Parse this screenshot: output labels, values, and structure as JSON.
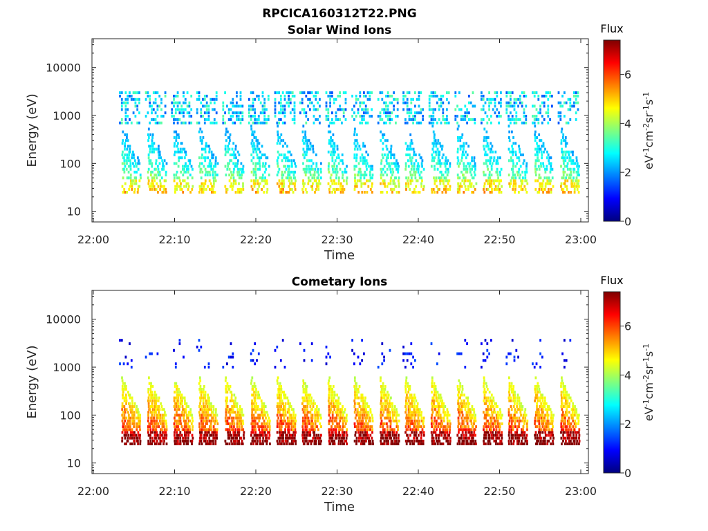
{
  "figure": {
    "title": "RPCICA160312T22.PNG"
  },
  "chart_data": [
    {
      "type": "heatmap",
      "title": "Solar Wind Ions",
      "xlabel": "Time",
      "ylabel": "Energy (eV)",
      "x_ticks": [
        "22:00",
        "22:10",
        "22:20",
        "22:30",
        "22:40",
        "22:50",
        "23:00"
      ],
      "x_range": [
        "22:00",
        "23:00"
      ],
      "y_scale": "log",
      "y_ticks": [
        10,
        100,
        1000,
        10000
      ],
      "y_tick_labels": [
        "10",
        "100",
        "1000",
        "10000"
      ],
      "y_range": [
        6,
        40000
      ],
      "colorbar": {
        "label": "Flux",
        "units": "eV-1cm-2sr-1s-1",
        "range": [
          0,
          7.4
        ],
        "ticks": [
          0,
          2,
          4,
          6
        ],
        "tick_labels": [
          "0",
          "2",
          "4",
          "6"
        ],
        "colormap": "jet"
      },
      "sweep_start_minutes": [
        3.5,
        6.7,
        9.9,
        13.0,
        16.2,
        19.4,
        22.6,
        25.7,
        28.9,
        32.1,
        35.3,
        38.4,
        41.6,
        44.8,
        48.0,
        51.1,
        54.3,
        57.5
      ],
      "bands": [
        {
          "name": "",
          "energy_range_eV": [
            25,
            600
          ],
          "flux_range": [
            1,
            4.5
          ]
        },
        {
          "name": "",
          "energy_range_eV": [
            700,
            3500
          ],
          "flux_range": [
            1.5,
            3.5
          ]
        }
      ]
    },
    {
      "type": "heatmap",
      "title": "Cometary Ions",
      "xlabel": "Time",
      "ylabel": "Energy (eV)",
      "x_ticks": [
        "22:00",
        "22:10",
        "22:20",
        "22:30",
        "22:40",
        "22:50",
        "23:00"
      ],
      "x_range": [
        "22:00",
        "23:00"
      ],
      "y_scale": "log",
      "y_ticks": [
        10,
        100,
        1000,
        10000
      ],
      "y_tick_labels": [
        "10",
        "100",
        "1000",
        "10000"
      ],
      "y_range": [
        6,
        40000
      ],
      "colorbar": {
        "label": "Flux",
        "units": "eV-1cm-2sr-1s-1",
        "range": [
          0,
          7.4
        ],
        "ticks": [
          0,
          2,
          4,
          6
        ],
        "tick_labels": [
          "0",
          "2",
          "4",
          "6"
        ],
        "colormap": "jet"
      },
      "sweep_start_minutes": [
        3.5,
        6.7,
        9.9,
        13.0,
        16.2,
        19.4,
        22.6,
        25.7,
        28.9,
        32.1,
        35.3,
        38.4,
        41.6,
        44.8,
        48.0,
        51.1,
        54.3,
        57.5
      ],
      "bands": [
        {
          "name": "",
          "energy_range_eV": [
            25,
            600
          ],
          "flux_range": [
            3,
            7
          ]
        },
        {
          "name": "",
          "energy_range_eV": [
            1000,
            4000
          ],
          "flux_range": [
            0.5,
            1.5
          ]
        }
      ]
    }
  ]
}
